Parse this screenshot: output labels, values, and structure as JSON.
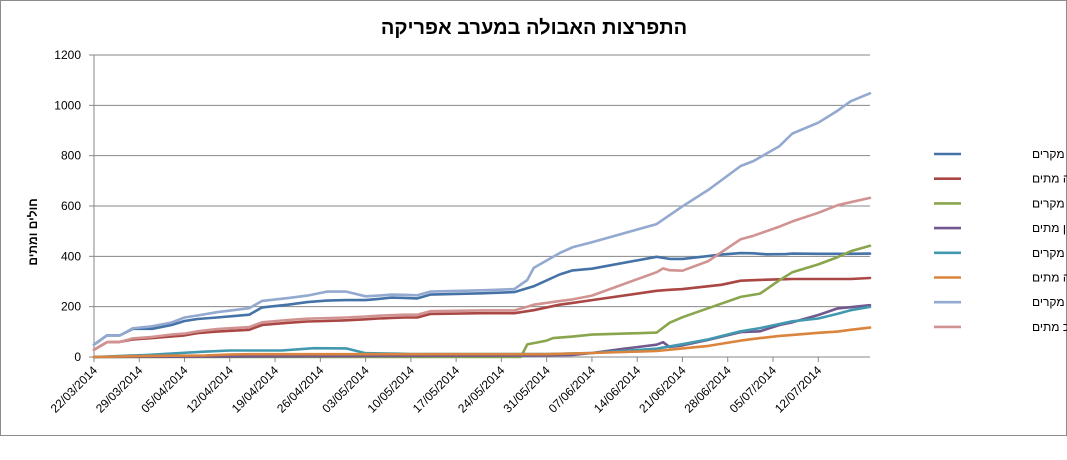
{
  "chart_data": {
    "type": "line",
    "title": "התפרצות האבולה במערב אפריקה",
    "xlabel": "",
    "ylabel": "חולים ומתים",
    "ylim": [
      0,
      1200
    ],
    "yticks": [
      0,
      200,
      400,
      600,
      800,
      1000,
      1200
    ],
    "grid": "horizontal",
    "legend_position": "right",
    "xrange": [
      "2014-03-22",
      "2014-07-20"
    ],
    "xticks": [
      "22/03/2014",
      "29/03/2014",
      "05/04/2014",
      "12/04/2014",
      "19/04/2014",
      "26/04/2014",
      "03/05/2014",
      "10/05/2014",
      "17/05/2014",
      "24/05/2014",
      "31/05/2014",
      "07/06/2014",
      "14/06/2014",
      "21/06/2014",
      "28/06/2014",
      "05/07/2014",
      "12/07/2014"
    ],
    "series": [
      {
        "name": "גינאה מקרים",
        "color": "#4572a7",
        "points": [
          [
            "2014-03-22",
            49
          ],
          [
            "2014-03-24",
            86
          ],
          [
            "2014-03-26",
            86
          ],
          [
            "2014-03-28",
            112
          ],
          [
            "2014-03-31",
            112
          ],
          [
            "2014-04-03",
            127
          ],
          [
            "2014-04-05",
            143
          ],
          [
            "2014-04-07",
            151
          ],
          [
            "2014-04-10",
            157
          ],
          [
            "2014-04-15",
            168
          ],
          [
            "2014-04-17",
            197
          ],
          [
            "2014-04-21",
            208
          ],
          [
            "2014-04-24",
            218
          ],
          [
            "2014-04-27",
            224
          ],
          [
            "2014-04-30",
            226
          ],
          [
            "2014-05-03",
            226
          ],
          [
            "2014-05-05",
            231
          ],
          [
            "2014-05-07",
            236
          ],
          [
            "2014-05-09",
            235
          ],
          [
            "2014-05-11",
            233
          ],
          [
            "2014-05-13",
            248
          ],
          [
            "2014-05-21",
            253
          ],
          [
            "2014-05-26",
            258
          ],
          [
            "2014-05-29",
            281
          ],
          [
            "2014-06-02",
            328
          ],
          [
            "2014-06-04",
            344
          ],
          [
            "2014-06-07",
            351
          ],
          [
            "2014-06-17",
            398
          ],
          [
            "2014-06-19",
            390
          ],
          [
            "2014-06-21",
            390
          ],
          [
            "2014-06-27",
            407
          ],
          [
            "2014-06-30",
            413
          ],
          [
            "2014-07-02",
            412
          ],
          [
            "2014-07-04",
            408
          ],
          [
            "2014-07-07",
            409
          ],
          [
            "2014-07-08",
            411
          ],
          [
            "2014-07-12",
            410
          ],
          [
            "2014-07-15",
            410
          ],
          [
            "2014-07-17",
            410
          ],
          [
            "2014-07-20",
            411
          ]
        ]
      },
      {
        "name": "גינאה מתים",
        "color": "#aa4643",
        "points": [
          [
            "2014-03-22",
            29
          ],
          [
            "2014-03-24",
            59
          ],
          [
            "2014-03-26",
            60
          ],
          [
            "2014-03-28",
            70
          ],
          [
            "2014-03-31",
            75
          ],
          [
            "2014-04-03",
            82
          ],
          [
            "2014-04-05",
            86
          ],
          [
            "2014-04-07",
            95
          ],
          [
            "2014-04-10",
            101
          ],
          [
            "2014-04-15",
            108
          ],
          [
            "2014-04-17",
            127
          ],
          [
            "2014-04-21",
            136
          ],
          [
            "2014-04-24",
            141
          ],
          [
            "2014-04-27",
            143
          ],
          [
            "2014-04-30",
            146
          ],
          [
            "2014-05-03",
            150
          ],
          [
            "2014-05-05",
            153
          ],
          [
            "2014-05-07",
            155
          ],
          [
            "2014-05-09",
            157
          ],
          [
            "2014-05-11",
            157
          ],
          [
            "2014-05-13",
            171
          ],
          [
            "2014-05-21",
            174
          ],
          [
            "2014-05-26",
            174
          ],
          [
            "2014-05-29",
            186
          ],
          [
            "2014-06-02",
            208
          ],
          [
            "2014-06-04",
            215
          ],
          [
            "2014-06-07",
            226
          ],
          [
            "2014-06-17",
            263
          ],
          [
            "2014-06-19",
            267
          ],
          [
            "2014-06-21",
            270
          ],
          [
            "2014-06-27",
            287
          ],
          [
            "2014-06-30",
            303
          ],
          [
            "2014-07-02",
            305
          ],
          [
            "2014-07-04",
            307
          ],
          [
            "2014-07-07",
            309
          ],
          [
            "2014-07-08",
            310
          ],
          [
            "2014-07-12",
            310
          ],
          [
            "2014-07-15",
            310
          ],
          [
            "2014-07-17",
            310
          ],
          [
            "2014-07-20",
            314
          ]
        ]
      },
      {
        "name": "סיירה לאון מקרים",
        "color": "#89a54e",
        "points": [
          [
            "2014-03-22",
            0
          ],
          [
            "2014-05-27",
            0
          ],
          [
            "2014-05-28",
            50
          ],
          [
            "2014-05-31",
            65
          ],
          [
            "2014-06-01",
            75
          ],
          [
            "2014-06-04",
            81
          ],
          [
            "2014-06-07",
            89
          ],
          [
            "2014-06-12",
            93
          ],
          [
            "2014-06-17",
            97
          ],
          [
            "2014-06-19",
            136
          ],
          [
            "2014-06-21",
            158
          ],
          [
            "2014-06-25",
            194
          ],
          [
            "2014-06-30",
            239
          ],
          [
            "2014-07-03",
            252
          ],
          [
            "2014-07-06",
            305
          ],
          [
            "2014-07-08",
            337
          ],
          [
            "2014-07-12",
            368
          ],
          [
            "2014-07-15",
            397
          ],
          [
            "2014-07-17",
            420
          ],
          [
            "2014-07-20",
            442
          ]
        ]
      },
      {
        "name": "סיירה לאון מתים",
        "color": "#71588f",
        "points": [
          [
            "2014-03-22",
            0
          ],
          [
            "2014-05-28",
            6
          ],
          [
            "2014-06-04",
            8
          ],
          [
            "2014-06-07",
            16
          ],
          [
            "2014-06-12",
            33
          ],
          [
            "2014-06-17",
            49
          ],
          [
            "2014-06-18",
            59
          ],
          [
            "2014-06-19",
            40
          ],
          [
            "2014-06-21",
            46
          ],
          [
            "2014-06-25",
            68
          ],
          [
            "2014-06-30",
            99
          ],
          [
            "2014-07-03",
            102
          ],
          [
            "2014-07-06",
            127
          ],
          [
            "2014-07-08",
            138
          ],
          [
            "2014-07-12",
            167
          ],
          [
            "2014-07-15",
            193
          ],
          [
            "2014-07-17",
            198
          ],
          [
            "2014-07-20",
            206
          ]
        ]
      },
      {
        "name": "ליבריה מקרים",
        "color": "#4198af",
        "points": [
          [
            "2014-03-22",
            0
          ],
          [
            "2014-03-30",
            8
          ],
          [
            "2014-04-03",
            14
          ],
          [
            "2014-04-08",
            21
          ],
          [
            "2014-04-12",
            26
          ],
          [
            "2014-04-15",
            26
          ],
          [
            "2014-04-20",
            26
          ],
          [
            "2014-04-25",
            35
          ],
          [
            "2014-04-30",
            34
          ],
          [
            "2014-05-03",
            15
          ],
          [
            "2014-05-08",
            13
          ],
          [
            "2014-05-10",
            12
          ],
          [
            "2014-05-20",
            12
          ],
          [
            "2014-05-31",
            12
          ],
          [
            "2014-06-07",
            16
          ],
          [
            "2014-06-17",
            33
          ],
          [
            "2014-06-21",
            51
          ],
          [
            "2014-06-25",
            70
          ],
          [
            "2014-06-30",
            102
          ],
          [
            "2014-07-03",
            115
          ],
          [
            "2014-07-06",
            131
          ],
          [
            "2014-07-08",
            142
          ],
          [
            "2014-07-12",
            153
          ],
          [
            "2014-07-15",
            172
          ],
          [
            "2014-07-17",
            186
          ],
          [
            "2014-07-20",
            199
          ]
        ]
      },
      {
        "name": "ליבריה מתים",
        "color": "#db843d",
        "points": [
          [
            "2014-03-22",
            0
          ],
          [
            "2014-03-30",
            4
          ],
          [
            "2014-04-03",
            5
          ],
          [
            "2014-04-08",
            6
          ],
          [
            "2014-04-12",
            10
          ],
          [
            "2014-04-15",
            11
          ],
          [
            "2014-04-20",
            11
          ],
          [
            "2014-04-25",
            11
          ],
          [
            "2014-04-30",
            11
          ],
          [
            "2014-05-03",
            11
          ],
          [
            "2014-05-10",
            11
          ],
          [
            "2014-05-20",
            11
          ],
          [
            "2014-05-31",
            11
          ],
          [
            "2014-06-07",
            16
          ],
          [
            "2014-06-17",
            24
          ],
          [
            "2014-06-21",
            34
          ],
          [
            "2014-06-25",
            44
          ],
          [
            "2014-06-30",
            65
          ],
          [
            "2014-07-03",
            75
          ],
          [
            "2014-07-06",
            84
          ],
          [
            "2014-07-08",
            88
          ],
          [
            "2014-07-12",
            96
          ],
          [
            "2014-07-15",
            101
          ],
          [
            "2014-07-17",
            108
          ],
          [
            "2014-07-20",
            117
          ]
        ]
      },
      {
        "name": "סה\"כ מקרים",
        "color": "#93a9cf",
        "points": [
          [
            "2014-03-22",
            49
          ],
          [
            "2014-03-24",
            86
          ],
          [
            "2014-03-26",
            86
          ],
          [
            "2014-03-28",
            114
          ],
          [
            "2014-03-31",
            122
          ],
          [
            "2014-04-03",
            137
          ],
          [
            "2014-04-05",
            157
          ],
          [
            "2014-04-07",
            165
          ],
          [
            "2014-04-10",
            178
          ],
          [
            "2014-04-15",
            194
          ],
          [
            "2014-04-17",
            223
          ],
          [
            "2014-04-21",
            234
          ],
          [
            "2014-04-24",
            244
          ],
          [
            "2014-04-27",
            260
          ],
          [
            "2014-04-30",
            260
          ],
          [
            "2014-05-03",
            241
          ],
          [
            "2014-05-05",
            244
          ],
          [
            "2014-05-07",
            248
          ],
          [
            "2014-05-09",
            247
          ],
          [
            "2014-05-11",
            245
          ],
          [
            "2014-05-13",
            260
          ],
          [
            "2014-05-21",
            265
          ],
          [
            "2014-05-26",
            270
          ],
          [
            "2014-05-28",
            306
          ],
          [
            "2014-05-29",
            354
          ],
          [
            "2014-06-02",
            413
          ],
          [
            "2014-06-04",
            436
          ],
          [
            "2014-06-07",
            456
          ],
          [
            "2014-06-17",
            528
          ],
          [
            "2014-06-21",
            599
          ],
          [
            "2014-06-25",
            664
          ],
          [
            "2014-06-30",
            759
          ],
          [
            "2014-07-02",
            779
          ],
          [
            "2014-07-06",
            838
          ],
          [
            "2014-07-08",
            888
          ],
          [
            "2014-07-12",
            931
          ],
          [
            "2014-07-15",
            979
          ],
          [
            "2014-07-17",
            1016
          ],
          [
            "2014-07-20",
            1048
          ]
        ]
      },
      {
        "name": "סה\"כ מתים",
        "color": "#d19392",
        "points": [
          [
            "2014-03-22",
            29
          ],
          [
            "2014-03-24",
            59
          ],
          [
            "2014-03-26",
            60
          ],
          [
            "2014-03-28",
            74
          ],
          [
            "2014-03-31",
            80
          ],
          [
            "2014-04-03",
            89
          ],
          [
            "2014-04-05",
            93
          ],
          [
            "2014-04-07",
            102
          ],
          [
            "2014-04-10",
            111
          ],
          [
            "2014-04-15",
            119
          ],
          [
            "2014-04-17",
            138
          ],
          [
            "2014-04-21",
            147
          ],
          [
            "2014-04-24",
            152
          ],
          [
            "2014-04-27",
            154
          ],
          [
            "2014-04-30",
            157
          ],
          [
            "2014-05-03",
            161
          ],
          [
            "2014-05-05",
            164
          ],
          [
            "2014-05-07",
            166
          ],
          [
            "2014-05-09",
            168
          ],
          [
            "2014-05-11",
            168
          ],
          [
            "2014-05-13",
            182
          ],
          [
            "2014-05-21",
            185
          ],
          [
            "2014-05-26",
            185
          ],
          [
            "2014-05-28",
            200
          ],
          [
            "2014-05-29",
            208
          ],
          [
            "2014-06-02",
            222
          ],
          [
            "2014-06-04",
            229
          ],
          [
            "2014-06-07",
            244
          ],
          [
            "2014-06-17",
            337
          ],
          [
            "2014-06-18",
            352
          ],
          [
            "2014-06-19",
            345
          ],
          [
            "2014-06-21",
            343
          ],
          [
            "2014-06-25",
            381
          ],
          [
            "2014-06-30",
            468
          ],
          [
            "2014-07-02",
            482
          ],
          [
            "2014-07-06",
            518
          ],
          [
            "2014-07-08",
            539
          ],
          [
            "2014-07-12",
            573
          ],
          [
            "2014-07-15",
            603
          ],
          [
            "2014-07-17",
            615
          ],
          [
            "2014-07-20",
            632
          ]
        ]
      }
    ]
  }
}
